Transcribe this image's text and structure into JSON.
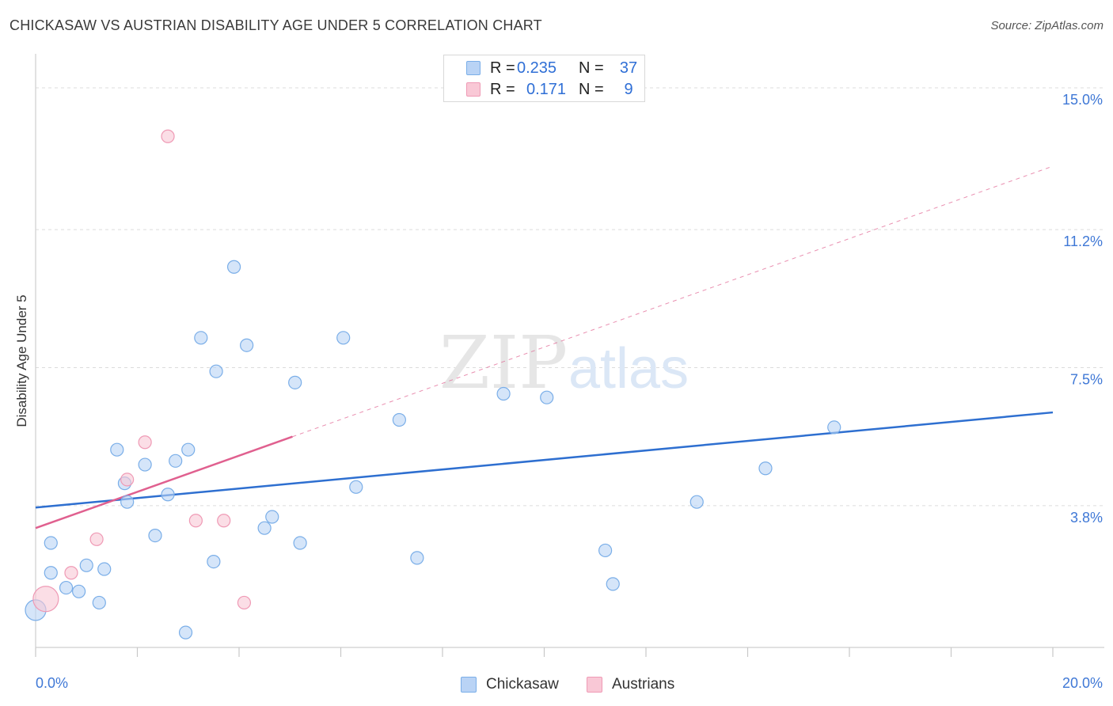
{
  "title": "CHICKASAW VS AUSTRIAN DISABILITY AGE UNDER 5 CORRELATION CHART",
  "source": "Source: ZipAtlas.com",
  "watermark": {
    "zip": "ZIP",
    "atlas": "atlas"
  },
  "legend_top": [
    {
      "series": "Chickasaw",
      "r_label": "R =",
      "r_value": "0.235",
      "n_label": "N =",
      "n_value": "37",
      "color": "#7aaee8",
      "fill": "#b9d3f5"
    },
    {
      "series": "Austrians",
      "r_label": "R =",
      "r_value": "0.171",
      "n_label": "N =",
      "n_value": "9",
      "color": "#ef9ab5",
      "fill": "#f9c8d6"
    }
  ],
  "legend_bottom": [
    {
      "label": "Chickasaw",
      "color": "#7aaee8",
      "fill": "#b9d3f5"
    },
    {
      "label": "Austrians",
      "color": "#ef9ab5",
      "fill": "#f9c8d6"
    }
  ],
  "chart_data": {
    "type": "scatter",
    "title": "CHICKASAW VS AUSTRIAN DISABILITY AGE UNDER 5 CORRELATION CHART",
    "xlabel": "",
    "ylabel": "Disability Age Under 5",
    "xlim": [
      0,
      20
    ],
    "ylim": [
      0,
      15.7
    ],
    "x_tick_labels": [
      "0.0%",
      "20.0%"
    ],
    "y_ticks": [
      3.8,
      7.5,
      11.2,
      15.0
    ],
    "y_tick_labels": [
      "3.8%",
      "7.5%",
      "11.2%",
      "15.0%"
    ],
    "grid": true,
    "series": [
      {
        "name": "Chickasaw",
        "color": "#7aaee8",
        "fill": "#b9d3f5",
        "line_color": "#2e6fd0",
        "points": [
          {
            "x": 0.0,
            "y": 1.0,
            "r": 13
          },
          {
            "x": 0.3,
            "y": 2.8
          },
          {
            "x": 0.3,
            "y": 2.0
          },
          {
            "x": 0.6,
            "y": 1.6
          },
          {
            "x": 0.85,
            "y": 1.5
          },
          {
            "x": 1.0,
            "y": 2.2
          },
          {
            "x": 1.25,
            "y": 1.2
          },
          {
            "x": 1.35,
            "y": 2.1
          },
          {
            "x": 1.6,
            "y": 5.3
          },
          {
            "x": 1.75,
            "y": 4.4
          },
          {
            "x": 1.8,
            "y": 3.9
          },
          {
            "x": 2.15,
            "y": 4.9
          },
          {
            "x": 2.35,
            "y": 3.0
          },
          {
            "x": 2.6,
            "y": 4.1
          },
          {
            "x": 2.75,
            "y": 5.0
          },
          {
            "x": 2.95,
            "y": 0.4
          },
          {
            "x": 3.0,
            "y": 5.3
          },
          {
            "x": 3.25,
            "y": 8.3
          },
          {
            "x": 3.5,
            "y": 2.3
          },
          {
            "x": 3.55,
            "y": 7.4
          },
          {
            "x": 3.9,
            "y": 10.2
          },
          {
            "x": 4.15,
            "y": 8.1
          },
          {
            "x": 4.5,
            "y": 3.2
          },
          {
            "x": 4.65,
            "y": 3.5
          },
          {
            "x": 5.1,
            "y": 7.1
          },
          {
            "x": 5.2,
            "y": 2.8
          },
          {
            "x": 6.05,
            "y": 8.3
          },
          {
            "x": 6.3,
            "y": 4.3
          },
          {
            "x": 7.15,
            "y": 6.1
          },
          {
            "x": 7.5,
            "y": 2.4
          },
          {
            "x": 9.2,
            "y": 6.8
          },
          {
            "x": 10.05,
            "y": 6.7
          },
          {
            "x": 11.2,
            "y": 2.6
          },
          {
            "x": 11.35,
            "y": 1.7
          },
          {
            "x": 13.0,
            "y": 3.9
          },
          {
            "x": 14.35,
            "y": 4.8
          },
          {
            "x": 15.7,
            "y": 5.9
          }
        ],
        "trend": {
          "x0": 0,
          "y0": 3.75,
          "x1": 20,
          "y1": 6.3,
          "dashed_from": null
        }
      },
      {
        "name": "Austrians",
        "color": "#ef9ab5",
        "fill": "#f9c8d6",
        "line_color": "#e0608f",
        "points": [
          {
            "x": 0.2,
            "y": 1.3,
            "r": 16
          },
          {
            "x": 0.7,
            "y": 2.0
          },
          {
            "x": 1.2,
            "y": 2.9
          },
          {
            "x": 1.8,
            "y": 4.5
          },
          {
            "x": 2.15,
            "y": 5.5
          },
          {
            "x": 2.6,
            "y": 13.7
          },
          {
            "x": 3.15,
            "y": 3.4
          },
          {
            "x": 3.7,
            "y": 3.4
          },
          {
            "x": 4.1,
            "y": 1.2
          }
        ],
        "trend": {
          "x0": 0,
          "y0": 3.2,
          "x1": 20,
          "y1": 12.9,
          "solid_until": 5.05
        }
      }
    ]
  }
}
